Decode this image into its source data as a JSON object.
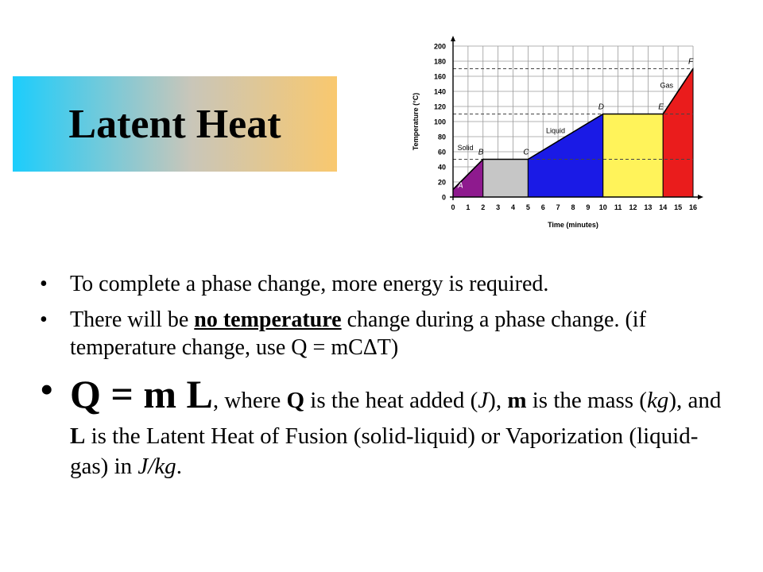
{
  "slide": {
    "title": "Latent Heat",
    "bullets": {
      "b1": "To complete a phase change, more energy is required.",
      "b2_pre": "There will be ",
      "b2_bold": "no temperature",
      "b2_post": " change during a phase change. (if temperature change, use Q = mCΔT)",
      "b3_formula": "Q = m L",
      "b3_t1": ", where ",
      "b3_q": "Q",
      "b3_t2": " is the heat added (",
      "b3_j": "J",
      "b3_t3": "), ",
      "b3_m": "m",
      "b3_t4": " is the mass (",
      "b3_kg": "kg",
      "b3_t5": "), and ",
      "b3_l": "L",
      "b3_t6": " is the Latent Heat of Fusion (solid-liquid) or Vaporization (liquid-gas) in ",
      "b3_unit": "J/kg",
      "b3_t7": "."
    },
    "bullet_char": "•"
  },
  "chart_data": {
    "type": "area",
    "xlabel": "Time (minutes)",
    "ylabel": "Temperature (°C)",
    "xlim": [
      0,
      16
    ],
    "ylim": [
      0,
      200
    ],
    "x_ticks": [
      0,
      1,
      2,
      3,
      4,
      5,
      6,
      7,
      8,
      9,
      10,
      11,
      12,
      13,
      14,
      15,
      16
    ],
    "y_ticks": [
      0,
      20,
      40,
      60,
      80,
      100,
      120,
      140,
      160,
      180,
      200
    ],
    "grid": true,
    "points": [
      {
        "label": "A",
        "x": 0,
        "y": 10
      },
      {
        "label": "B",
        "x": 2,
        "y": 50
      },
      {
        "label": "C",
        "x": 5,
        "y": 50
      },
      {
        "label": "D",
        "x": 10,
        "y": 110
      },
      {
        "label": "E",
        "x": 14,
        "y": 110
      },
      {
        "label": "F",
        "x": 16,
        "y": 170
      }
    ],
    "regions": [
      {
        "x0": 0,
        "x1": 2,
        "y0": 10,
        "y1": 50,
        "color": "#8e1a8e"
      },
      {
        "x0": 2,
        "x1": 5,
        "y0": 50,
        "y1": 50,
        "color": "#c6c6c6"
      },
      {
        "x0": 5,
        "x1": 10,
        "y0": 50,
        "y1": 110,
        "color": "#1a1ae6"
      },
      {
        "x0": 10,
        "x1": 14,
        "y0": 110,
        "y1": 110,
        "color": "#fff35a"
      },
      {
        "x0": 14,
        "x1": 16,
        "y0": 110,
        "y1": 170,
        "color": "#ea1c1c"
      }
    ],
    "phase_labels": [
      {
        "text": "Solid",
        "x": 0.3,
        "y": 62
      },
      {
        "text": "Liquid",
        "x": 6.2,
        "y": 85
      },
      {
        "text": "Gas",
        "x": 13.8,
        "y": 145
      }
    ],
    "reference_lines": [
      50,
      110,
      170
    ]
  }
}
